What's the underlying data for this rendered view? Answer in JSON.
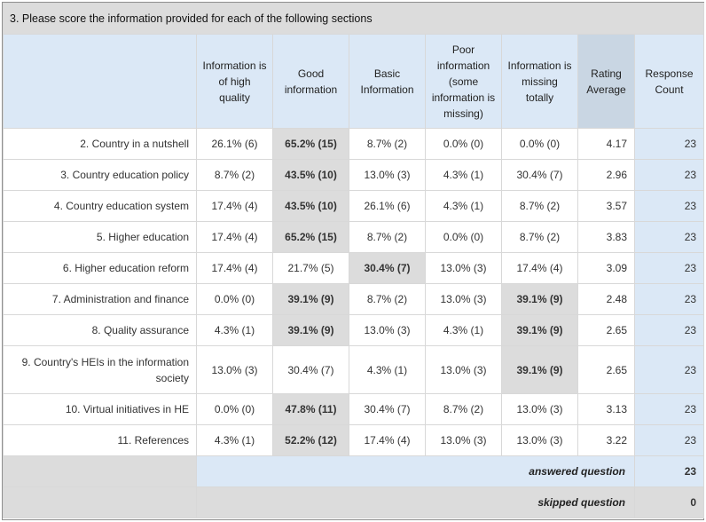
{
  "title": "3. Please score the information provided for each of the following sections",
  "columns": [
    "Information is of high quality",
    "Good information",
    "Basic Information",
    "Poor information (some information is missing)",
    "Information is missing totally",
    "Rating Average",
    "Response Count"
  ],
  "rows": [
    {
      "label": "2. Country in a nutshell",
      "c0": "26.1% (6)",
      "c1": "65.2% (15)",
      "c2": "8.7% (2)",
      "c3": "0.0% (0)",
      "c4": "0.0% (0)",
      "avg": "4.17",
      "count": "23",
      "highlight": 1
    },
    {
      "label": "3. Country education policy",
      "c0": "8.7% (2)",
      "c1": "43.5% (10)",
      "c2": "13.0% (3)",
      "c3": "4.3% (1)",
      "c4": "30.4% (7)",
      "avg": "2.96",
      "count": "23",
      "highlight": 1
    },
    {
      "label": "4. Country education system",
      "c0": "17.4% (4)",
      "c1": "43.5% (10)",
      "c2": "26.1% (6)",
      "c3": "4.3% (1)",
      "c4": "8.7% (2)",
      "avg": "3.57",
      "count": "23",
      "highlight": 1
    },
    {
      "label": "5. Higher education",
      "c0": "17.4% (4)",
      "c1": "65.2% (15)",
      "c2": "8.7% (2)",
      "c3": "0.0% (0)",
      "c4": "8.7% (2)",
      "avg": "3.83",
      "count": "23",
      "highlight": 1
    },
    {
      "label": "6. Higher education reform",
      "c0": "17.4% (4)",
      "c1": "21.7% (5)",
      "c2": "30.4% (7)",
      "c3": "13.0% (3)",
      "c4": "17.4% (4)",
      "avg": "3.09",
      "count": "23",
      "highlight": 2
    },
    {
      "label": "7. Administration and finance",
      "c0": "0.0% (0)",
      "c1": "39.1% (9)",
      "c2": "8.7% (2)",
      "c3": "13.0% (3)",
      "c4": "39.1% (9)",
      "avg": "2.48",
      "count": "23",
      "highlight": [
        1,
        4
      ]
    },
    {
      "label": "8. Quality assurance",
      "c0": "4.3% (1)",
      "c1": "39.1% (9)",
      "c2": "13.0% (3)",
      "c3": "4.3% (1)",
      "c4": "39.1% (9)",
      "avg": "2.65",
      "count": "23",
      "highlight": [
        1,
        4
      ]
    },
    {
      "label": "9. Country's HEIs in the information society",
      "c0": "13.0% (3)",
      "c1": "30.4% (7)",
      "c2": "4.3% (1)",
      "c3": "13.0% (3)",
      "c4": "39.1% (9)",
      "avg": "2.65",
      "count": "23",
      "highlight": 4
    },
    {
      "label": "10. Virtual initiatives in HE",
      "c0": "0.0% (0)",
      "c1": "47.8% (11)",
      "c2": "30.4% (7)",
      "c3": "8.7% (2)",
      "c4": "13.0% (3)",
      "avg": "3.13",
      "count": "23",
      "highlight": 1
    },
    {
      "label": "11. References",
      "c0": "4.3% (1)",
      "c1": "52.2% (12)",
      "c2": "17.4% (4)",
      "c3": "13.0% (3)",
      "c4": "13.0% (3)",
      "avg": "3.22",
      "count": "23",
      "highlight": 1
    }
  ],
  "footer": {
    "answered_label": "answered question",
    "answered_value": "23",
    "skipped_label": "skipped question",
    "skipped_value": "0"
  }
}
